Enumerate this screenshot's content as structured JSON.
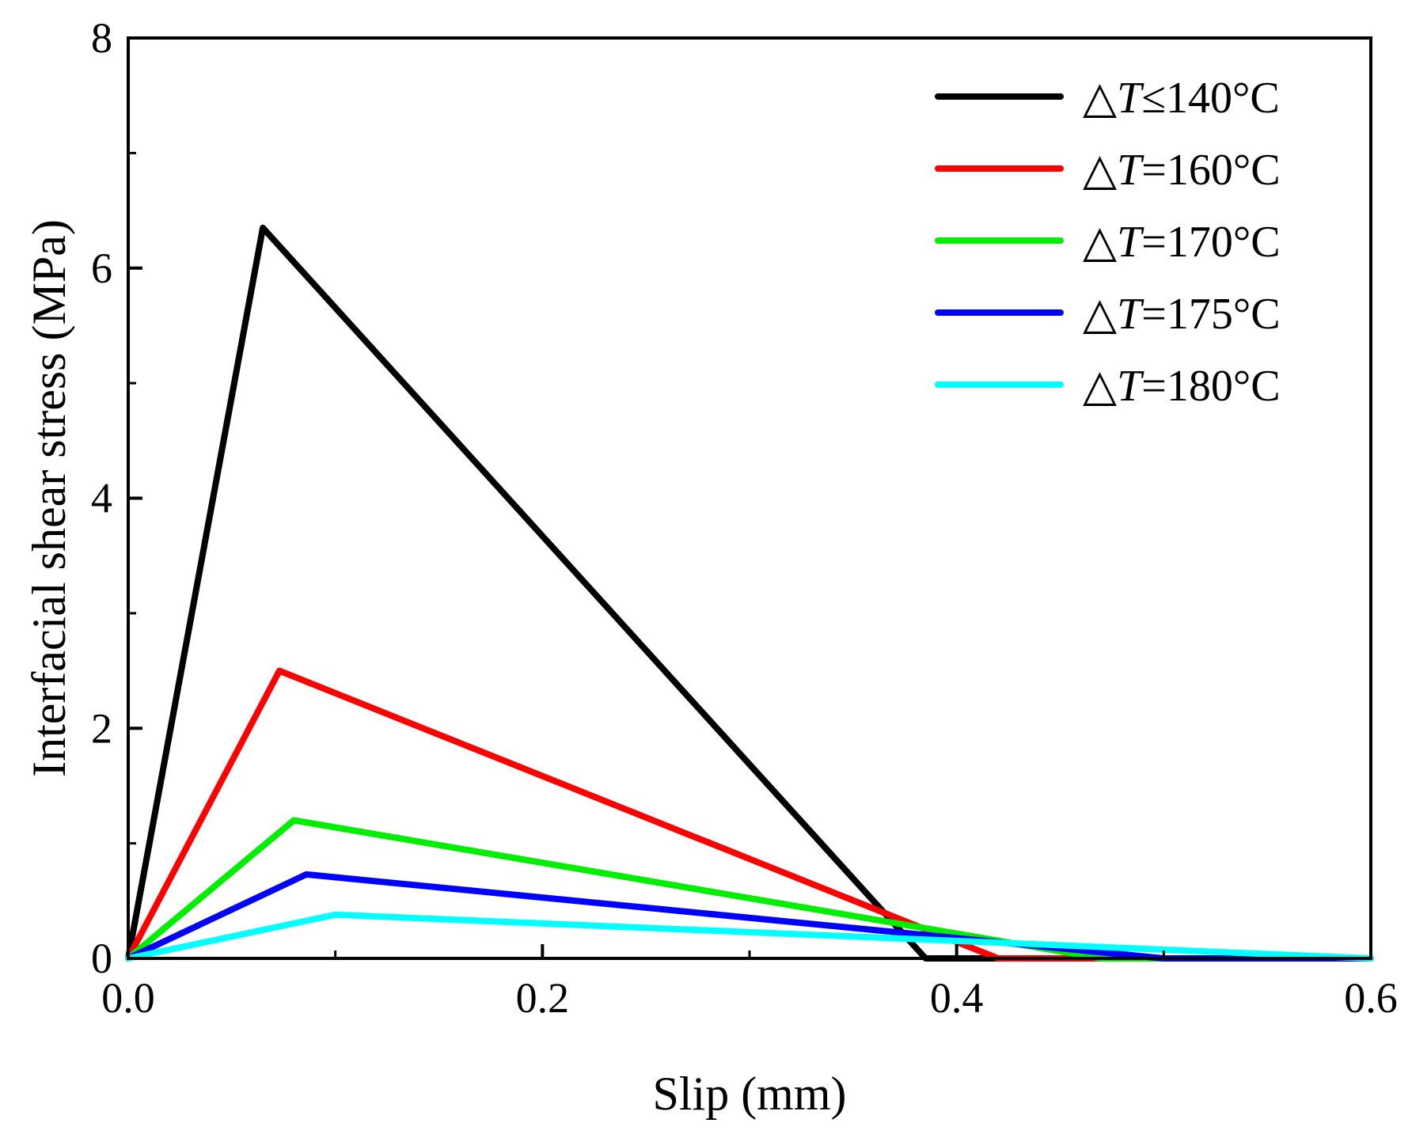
{
  "chart_data": {
    "type": "line",
    "title": "",
    "xlabel": "Slip (mm)",
    "ylabel": "Interfacial shear stress (MPa)",
    "xlim": [
      0.0,
      0.6
    ],
    "ylim": [
      0,
      8
    ],
    "x_ticks": [
      0.0,
      0.2,
      0.4,
      0.6
    ],
    "x_tick_labels": [
      "0.0",
      "0.2",
      "0.4",
      "0.6"
    ],
    "x_minor_ticks": [
      0.1,
      0.3,
      0.5
    ],
    "y_ticks": [
      0,
      2,
      4,
      6,
      8
    ],
    "y_tick_labels": [
      "0",
      "2",
      "4",
      "6",
      "8"
    ],
    "y_minor_ticks": [
      1,
      3,
      5,
      7
    ],
    "grid": false,
    "legend_position": "top-right",
    "series": [
      {
        "name": "△T≤140°C",
        "prefix": "△",
        "italic": "T",
        "suffix": "≤140°C",
        "color": "#000000",
        "points": [
          [
            0.0,
            0.0
          ],
          [
            0.065,
            6.35
          ],
          [
            0.385,
            0.0
          ],
          [
            0.6,
            0.0
          ]
        ]
      },
      {
        "name": "△T=160°C",
        "prefix": "△",
        "italic": "T",
        "suffix": "=160°C",
        "color": "#ff0000",
        "points": [
          [
            0.0,
            0.0
          ],
          [
            0.073,
            2.5
          ],
          [
            0.42,
            0.0
          ],
          [
            0.6,
            0.0
          ]
        ]
      },
      {
        "name": "△T=170°C",
        "prefix": "△",
        "italic": "T",
        "suffix": "=170°C",
        "color": "#00ee00",
        "points": [
          [
            0.0,
            0.0
          ],
          [
            0.08,
            1.2
          ],
          [
            0.47,
            0.0
          ],
          [
            0.6,
            0.0
          ]
        ]
      },
      {
        "name": "△T=175°C",
        "prefix": "△",
        "italic": "T",
        "suffix": "=175°C",
        "color": "#0000ff",
        "points": [
          [
            0.0,
            0.0
          ],
          [
            0.086,
            0.73
          ],
          [
            0.5,
            0.0
          ],
          [
            0.6,
            0.0
          ]
        ]
      },
      {
        "name": "△T=180°C",
        "prefix": "△",
        "italic": "T",
        "suffix": "=180°C",
        "color": "#00ffff",
        "points": [
          [
            0.0,
            0.0
          ],
          [
            0.1,
            0.38
          ],
          [
            0.6,
            0.0
          ]
        ]
      }
    ]
  }
}
